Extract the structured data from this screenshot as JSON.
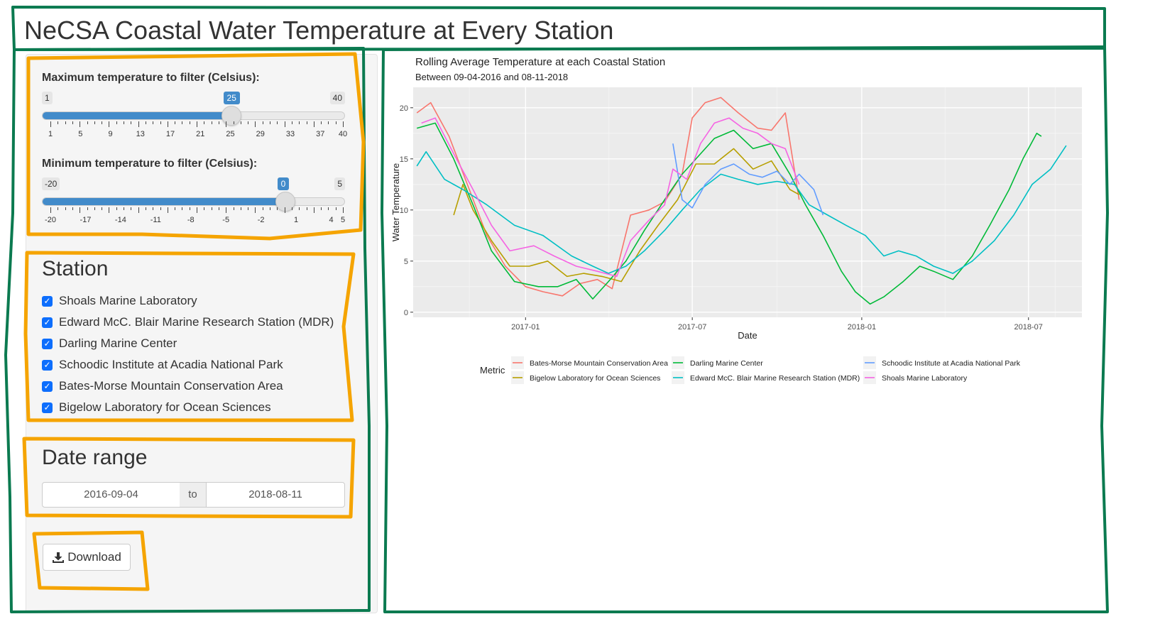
{
  "app": {
    "title": "NeCSA Coastal Water Temperature at Every Station"
  },
  "sidebar": {
    "max_slider": {
      "label": "Maximum temperature to filter (Celsius):",
      "min": 1,
      "max": 40,
      "value": 25,
      "min_label": "1",
      "max_label": "40",
      "value_label": "25",
      "grid_labels": [
        "1",
        "5",
        "9",
        "13",
        "17",
        "21",
        "25",
        "29",
        "33",
        "37",
        "40"
      ]
    },
    "min_slider": {
      "label": "Minimum temperature to filter (Celsius):",
      "min": -20,
      "max": 5,
      "value": 0,
      "min_label": "-20",
      "max_label": "5",
      "value_label": "0",
      "grid_labels": [
        "-20",
        "-17",
        "-14",
        "-11",
        "-8",
        "-5",
        "-2",
        "1",
        "4",
        "5"
      ]
    },
    "station": {
      "heading": "Station",
      "options": [
        {
          "label": "Shoals Marine Laboratory",
          "checked": true
        },
        {
          "label": "Edward McC. Blair Marine Research Station (MDR)",
          "checked": true
        },
        {
          "label": "Darling Marine Center",
          "checked": true
        },
        {
          "label": "Schoodic Institute at Acadia National Park",
          "checked": true
        },
        {
          "label": "Bates-Morse Mountain Conservation Area",
          "checked": true
        },
        {
          "label": "Bigelow Laboratory for Ocean Sciences",
          "checked": true
        }
      ]
    },
    "date_range": {
      "heading": "Date range",
      "start": "2016-09-04",
      "separator": "to",
      "end": "2018-08-11"
    },
    "download": {
      "label": "Download",
      "icon": "download-icon"
    }
  },
  "chart_data": {
    "type": "line",
    "title": "Rolling Average Temperature at each Coastal Station",
    "subtitle": "Between 09-04-2016 and 08-11-2018",
    "xlabel": "Date",
    "ylabel": "Water Temperature",
    "x_ticks": [
      "2017-01",
      "2017-07",
      "2018-01",
      "2018-07"
    ],
    "y_ticks": [
      0,
      5,
      10,
      15,
      20
    ],
    "ylim": [
      -0.5,
      22
    ],
    "xlim": [
      "2016-09-01",
      "2018-08-28"
    ],
    "grid": true,
    "legend_title": "Metric",
    "legend_position": "bottom",
    "series": [
      {
        "name": "Bates-Morse Mountain Conservation Area",
        "color": "#F8766D",
        "x": [
          "2016-09-05",
          "2016-09-20",
          "2016-10-10",
          "2016-11-01",
          "2016-11-20",
          "2016-12-10",
          "2017-01-01",
          "2017-01-20",
          "2017-02-10",
          "2017-03-01",
          "2017-03-20",
          "2017-04-05",
          "2017-04-25",
          "2017-05-15",
          "2017-06-01",
          "2017-06-20",
          "2017-07-01",
          "2017-07-15",
          "2017-08-01",
          "2017-08-20",
          "2017-09-10",
          "2017-09-25",
          "2017-10-10",
          "2017-10-25"
        ],
        "y": [
          19.5,
          20.5,
          17.2,
          12.0,
          7.5,
          4.5,
          2.5,
          2.0,
          1.6,
          2.8,
          3.2,
          2.3,
          9.5,
          10.0,
          10.8,
          13.5,
          19.0,
          20.5,
          21.0,
          19.5,
          18.0,
          17.8,
          19.5,
          11.0
        ]
      },
      {
        "name": "Bigelow Laboratory for Ocean Sciences",
        "color": "#B79F00",
        "x": [
          "2016-10-15",
          "2016-10-25",
          "2016-11-05",
          "2016-11-25",
          "2016-12-15",
          "2017-01-05",
          "2017-01-25",
          "2017-02-15",
          "2017-03-05",
          "2017-03-25",
          "2017-04-15",
          "2017-05-05",
          "2017-05-25",
          "2017-06-15",
          "2017-07-05",
          "2017-07-25",
          "2017-08-15",
          "2017-09-05",
          "2017-09-25",
          "2017-10-15",
          "2017-10-25"
        ],
        "y": [
          9.5,
          12.5,
          10.0,
          7.0,
          4.5,
          4.5,
          5.0,
          3.5,
          3.8,
          3.5,
          3.0,
          6.0,
          8.5,
          11.0,
          14.5,
          14.5,
          16.0,
          14.0,
          14.8,
          12.0,
          11.5
        ]
      },
      {
        "name": "Darling Marine Center",
        "color": "#00BA38",
        "x": [
          "2016-09-05",
          "2016-09-25",
          "2016-10-15",
          "2016-11-05",
          "2016-11-25",
          "2016-12-20",
          "2017-01-15",
          "2017-02-05",
          "2017-02-25",
          "2017-03-15",
          "2017-04-01",
          "2017-04-20",
          "2017-05-10",
          "2017-06-01",
          "2017-06-20",
          "2017-07-10",
          "2017-07-25",
          "2017-08-15",
          "2017-09-05",
          "2017-09-25",
          "2017-10-15",
          "2017-11-01",
          "2017-11-20",
          "2017-12-10",
          "2017-12-25",
          "2018-01-10",
          "2018-01-25",
          "2018-02-15",
          "2018-03-05",
          "2018-03-20",
          "2018-04-10",
          "2018-05-01",
          "2018-05-20",
          "2018-06-10",
          "2018-06-25",
          "2018-07-10",
          "2018-07-15"
        ],
        "y": [
          18.0,
          18.5,
          15.0,
          10.5,
          6.0,
          3.0,
          2.5,
          2.5,
          3.2,
          1.3,
          3.0,
          5.0,
          8.0,
          11.0,
          13.5,
          15.5,
          17.0,
          17.8,
          16.0,
          16.5,
          13.5,
          10.5,
          7.5,
          4.0,
          2.0,
          0.8,
          1.5,
          3.0,
          4.5,
          4.0,
          3.2,
          5.5,
          8.5,
          12.0,
          15.0,
          17.5,
          17.2
        ]
      },
      {
        "name": "Edward McC. Blair Marine Research Station (MDR)",
        "color": "#00BFC4",
        "x": [
          "2016-09-05",
          "2016-09-15",
          "2016-10-05",
          "2016-10-25",
          "2016-11-20",
          "2016-12-20",
          "2017-01-20",
          "2017-02-20",
          "2017-03-15",
          "2017-04-01",
          "2017-04-20",
          "2017-05-10",
          "2017-06-01",
          "2017-06-20",
          "2017-07-10",
          "2017-08-01",
          "2017-08-20",
          "2017-09-10",
          "2017-10-01",
          "2017-10-20",
          "2017-11-05",
          "2017-11-25",
          "2017-12-15",
          "2018-01-05",
          "2018-01-25",
          "2018-02-10",
          "2018-03-01",
          "2018-03-20",
          "2018-04-10",
          "2018-05-01",
          "2018-05-25",
          "2018-06-15",
          "2018-07-05",
          "2018-07-25",
          "2018-08-11"
        ],
        "y": [
          14.3,
          15.7,
          13.0,
          12.0,
          10.5,
          8.5,
          7.5,
          5.5,
          4.5,
          3.8,
          4.5,
          6.0,
          8.0,
          10.0,
          12.0,
          13.5,
          13.0,
          12.5,
          12.8,
          12.5,
          10.5,
          9.5,
          8.5,
          7.5,
          5.5,
          6.0,
          5.5,
          4.5,
          3.8,
          5.0,
          7.0,
          9.5,
          12.5,
          14.0,
          16.3
        ]
      },
      {
        "name": "Schoodic Institute at Acadia National Park",
        "color": "#619CFF",
        "x": [
          "2017-06-10",
          "2017-06-20",
          "2017-07-01",
          "2017-07-15",
          "2017-08-01",
          "2017-08-15",
          "2017-09-01",
          "2017-09-15",
          "2017-10-01",
          "2017-10-15",
          "2017-10-25",
          "2017-11-10",
          "2017-11-20"
        ],
        "y": [
          16.5,
          11.0,
          10.2,
          12.5,
          14.0,
          14.5,
          13.5,
          13.2,
          13.8,
          12.5,
          13.5,
          12.0,
          9.5
        ]
      },
      {
        "name": "Shoals Marine Laboratory",
        "color": "#F564E3",
        "x": [
          "2016-09-10",
          "2016-09-25",
          "2016-10-15",
          "2016-11-05",
          "2016-11-25",
          "2016-12-15",
          "2017-01-10",
          "2017-02-01",
          "2017-02-25",
          "2017-03-20",
          "2017-04-10",
          "2017-04-25",
          "2017-05-15",
          "2017-06-01",
          "2017-06-10",
          "2017-06-25",
          "2017-07-10",
          "2017-07-25",
          "2017-08-10",
          "2017-08-25",
          "2017-09-10",
          "2017-09-25",
          "2017-10-10",
          "2017-10-25"
        ],
        "y": [
          18.5,
          19.0,
          15.5,
          12.0,
          8.5,
          6.0,
          6.5,
          5.5,
          4.5,
          4.0,
          3.5,
          7.0,
          9.0,
          10.5,
          14.0,
          13.0,
          16.5,
          18.5,
          19.0,
          18.0,
          17.5,
          16.5,
          16.0,
          12.5
        ]
      }
    ]
  }
}
